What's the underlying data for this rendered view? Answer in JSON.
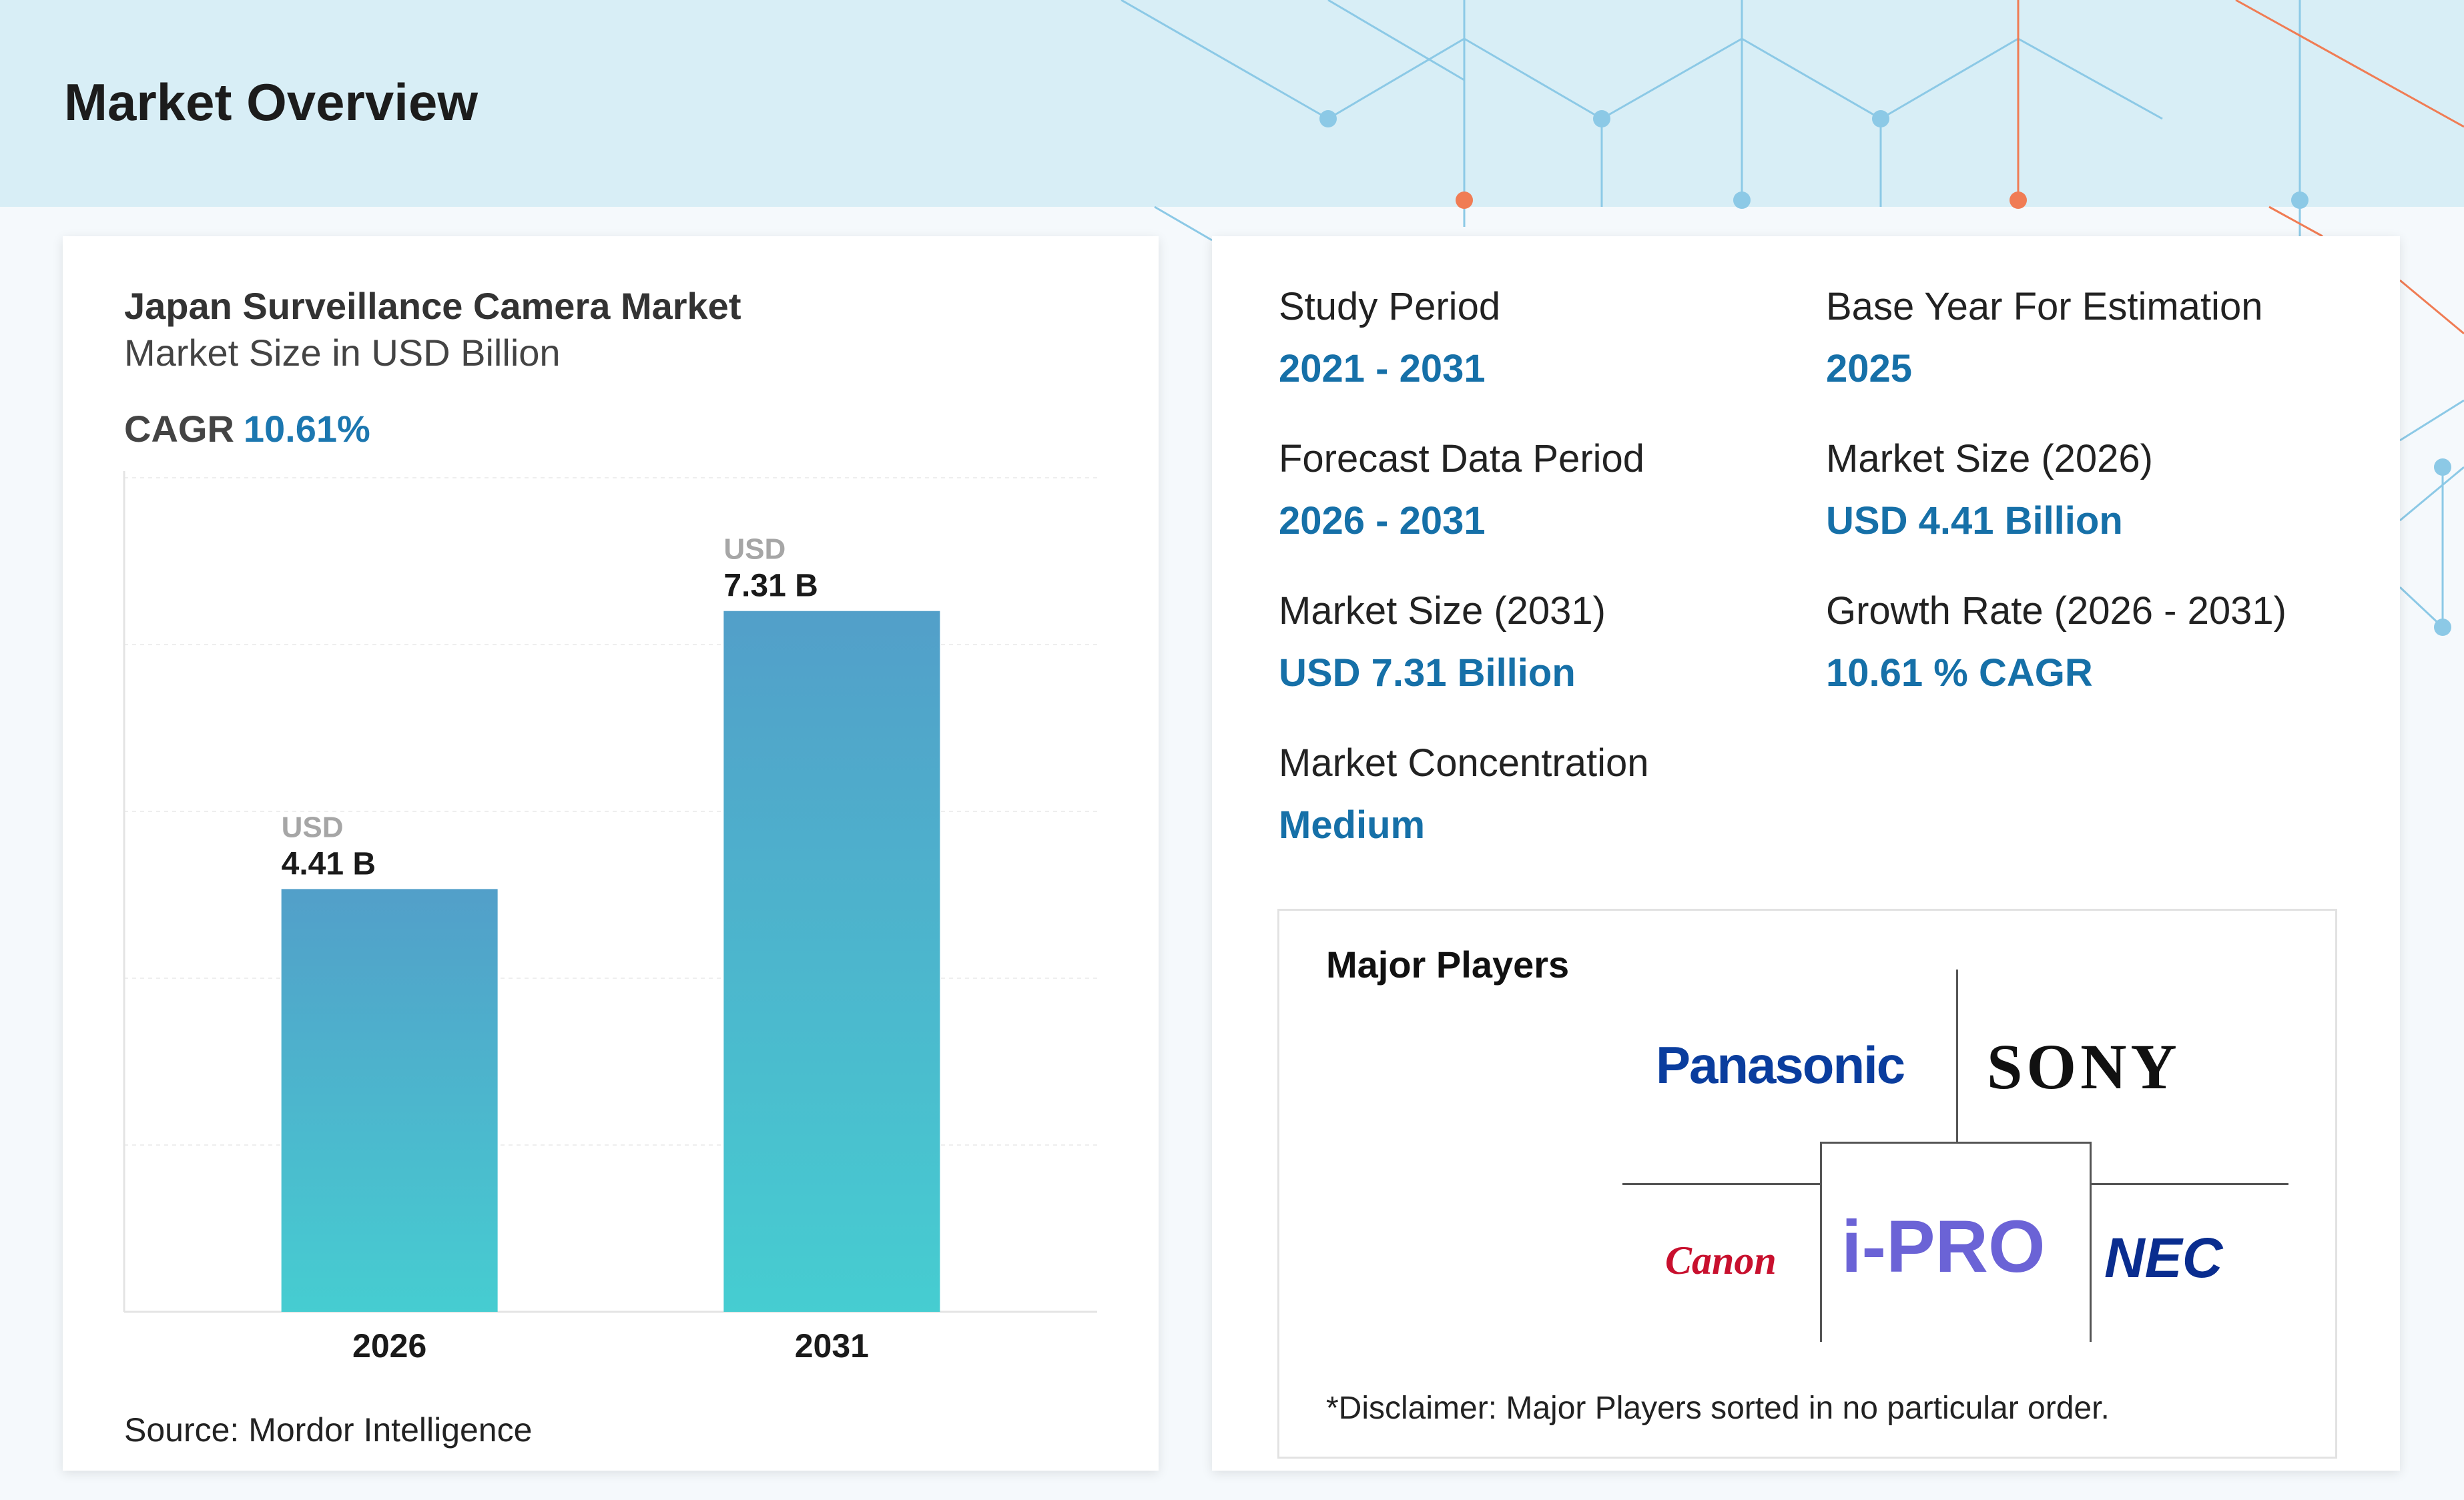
{
  "header": {
    "title": "Market Overview"
  },
  "left_card": {
    "title": "Japan Surveillance Camera Market",
    "subtitle": "Market Size in USD Billion",
    "cagr_label": "CAGR",
    "cagr_value": "10.61%",
    "source": "Source: Mordor Intelligence"
  },
  "chart_data": {
    "type": "bar",
    "title": "Japan Surveillance Camera Market",
    "subtitle": "Market Size in USD Billion",
    "categories": [
      "2026",
      "2031"
    ],
    "values": [
      4.41,
      7.31
    ],
    "value_prefix": "USD",
    "value_labels": [
      "4.41 B",
      "7.31 B"
    ],
    "ylim": [
      0,
      8.7
    ],
    "grid": true,
    "bar_color_top": "#529fc9",
    "bar_color_bottom": "#46cdd1"
  },
  "facts": {
    "study_period": {
      "label": "Study Period",
      "value": "2021 - 2031"
    },
    "base_year": {
      "label": "Base Year For Estimation",
      "value": "2025"
    },
    "forecast_period": {
      "label": "Forecast Data Period",
      "value": "2026 - 2031"
    },
    "market_size_2026": {
      "label": "Market Size (2026)",
      "value": "USD 4.41 Billion"
    },
    "market_size_2031": {
      "label": "Market Size (2031)",
      "value": "USD 7.31 Billion"
    },
    "growth_rate": {
      "label": "Growth Rate (2026 - 2031)",
      "value": "10.61 % CAGR"
    },
    "concentration": {
      "label": "Market Concentration",
      "value": "Medium"
    }
  },
  "players": {
    "title": "Major Players",
    "logos": {
      "panasonic": "Panasonic",
      "sony": "SONY",
      "canon": "Canon",
      "ipro": "i-PRO",
      "nec": "NEC"
    },
    "disclaimer": "*Disclaimer: Major Players sorted in no particular order."
  },
  "colors": {
    "accent_blue": "#1670a8",
    "header_bg": "#d8eef6",
    "network_blue": "#8cc9e6",
    "network_orange": "#f07c54"
  }
}
